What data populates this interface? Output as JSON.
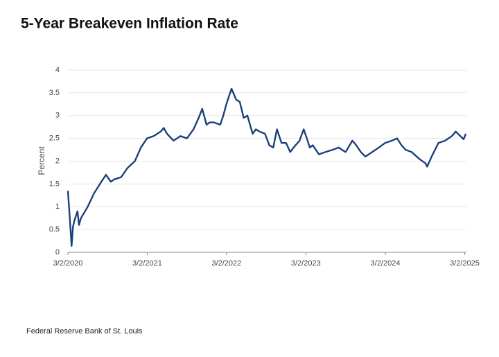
{
  "chart_data": {
    "type": "line",
    "title": "5-Year Breakeven Inflation Rate",
    "ylabel": "Percent",
    "source": "Federal Reserve Bank of St. Louis",
    "x": [
      "2020-03-02",
      "2020-03-10",
      "2020-03-19",
      "2020-03-25",
      "2020-04-01",
      "2020-04-15",
      "2020-04-22",
      "2020-05-01",
      "2020-06-01",
      "2020-07-01",
      "2020-08-03",
      "2020-08-24",
      "2020-09-15",
      "2020-10-01",
      "2020-11-02",
      "2020-12-01",
      "2021-01-04",
      "2021-02-01",
      "2021-03-01",
      "2021-04-01",
      "2021-05-03",
      "2021-05-17",
      "2021-06-01",
      "2021-07-01",
      "2021-08-02",
      "2021-09-01",
      "2021-10-01",
      "2021-10-25",
      "2021-11-10",
      "2021-11-30",
      "2021-12-15",
      "2022-01-03",
      "2022-02-01",
      "2022-02-15",
      "2022-03-01",
      "2022-03-25",
      "2022-04-15",
      "2022-05-02",
      "2022-05-20",
      "2022-06-06",
      "2022-06-30",
      "2022-07-15",
      "2022-08-01",
      "2022-08-26",
      "2022-09-15",
      "2022-10-03",
      "2022-10-20",
      "2022-11-10",
      "2022-12-01",
      "2022-12-20",
      "2023-01-05",
      "2023-02-01",
      "2023-02-20",
      "2023-03-10",
      "2023-03-20",
      "2023-04-03",
      "2023-05-01",
      "2023-06-01",
      "2023-07-03",
      "2023-08-01",
      "2023-08-15",
      "2023-09-01",
      "2023-10-02",
      "2023-10-20",
      "2023-11-10",
      "2023-12-01",
      "2024-01-02",
      "2024-02-01",
      "2024-03-01",
      "2024-04-01",
      "2024-04-25",
      "2024-05-15",
      "2024-06-03",
      "2024-07-01",
      "2024-08-05",
      "2024-09-03",
      "2024-09-10",
      "2024-10-01",
      "2024-11-01",
      "2024-12-02",
      "2025-01-02",
      "2025-01-20",
      "2025-02-10",
      "2025-02-25",
      "2025-03-07"
    ],
    "series": [
      {
        "name": "5-Year Breakeven Inflation Rate",
        "color": "#1c3f7c",
        "values": [
          1.35,
          0.8,
          0.14,
          0.55,
          0.7,
          0.9,
          0.6,
          0.75,
          1.0,
          1.3,
          1.55,
          1.7,
          1.55,
          1.6,
          1.65,
          1.85,
          2.0,
          2.3,
          2.5,
          2.55,
          2.65,
          2.73,
          2.6,
          2.45,
          2.55,
          2.5,
          2.7,
          2.95,
          3.15,
          2.8,
          2.85,
          2.85,
          2.8,
          3.0,
          3.25,
          3.59,
          3.35,
          3.3,
          2.95,
          3.0,
          2.6,
          2.7,
          2.65,
          2.6,
          2.35,
          2.3,
          2.7,
          2.4,
          2.4,
          2.2,
          2.3,
          2.45,
          2.7,
          2.45,
          2.3,
          2.35,
          2.15,
          2.2,
          2.25,
          2.3,
          2.25,
          2.2,
          2.45,
          2.35,
          2.2,
          2.1,
          2.2,
          2.3,
          2.4,
          2.45,
          2.5,
          2.35,
          2.25,
          2.2,
          2.05,
          1.95,
          1.88,
          2.1,
          2.4,
          2.45,
          2.55,
          2.65,
          2.55,
          2.48,
          2.6
        ]
      }
    ],
    "xlim": [
      "2020-03-02",
      "2025-03-10"
    ],
    "xticks": [
      {
        "value": "2020-03-02",
        "label": "3/2/2020"
      },
      {
        "value": "2021-03-02",
        "label": "3/2/2021"
      },
      {
        "value": "2022-03-02",
        "label": "3/2/2022"
      },
      {
        "value": "2023-03-02",
        "label": "3/2/2023"
      },
      {
        "value": "2024-03-02",
        "label": "3/2/2024"
      },
      {
        "value": "2025-03-02",
        "label": "3/2/2025"
      }
    ],
    "ylim": [
      0,
      4
    ],
    "yticks": [
      0,
      0.5,
      1,
      1.5,
      2,
      2.5,
      3,
      3.5,
      4
    ],
    "grid": true
  }
}
